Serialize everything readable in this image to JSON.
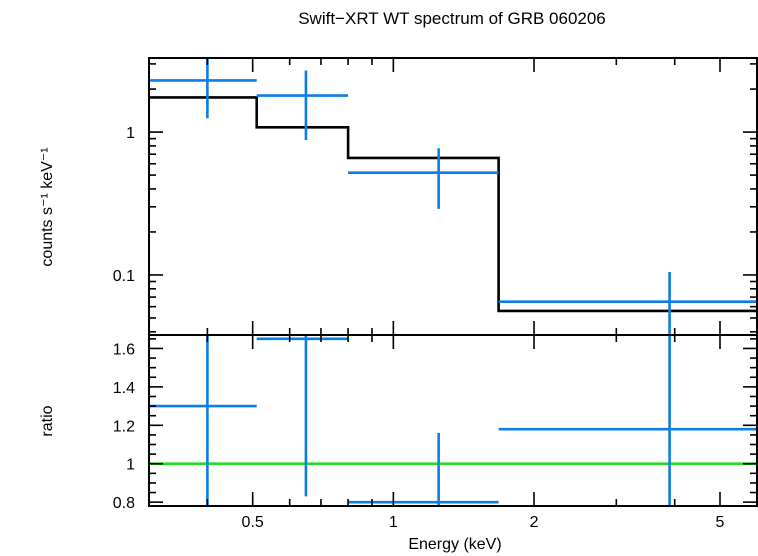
{
  "chart_data": [
    {
      "type": "line",
      "title": "Swift−XRT WT spectrum of GRB 060206",
      "ylabel": "counts s⁻¹ keV⁻¹",
      "xlabel": "",
      "xscale": "log",
      "yscale": "log",
      "xlim": [
        0.3,
        6.0
      ],
      "ylim": [
        0.038,
        3.3
      ],
      "y_ticks": [
        {
          "value": 0.1,
          "label": "0.1"
        },
        {
          "value": 1,
          "label": "1"
        }
      ],
      "series": [
        {
          "type": "errorbars",
          "color": "#0a7ee6",
          "points": [
            {
              "x": 0.4,
              "xlo": 0.3,
              "xhi": 0.51,
              "y": 2.3,
              "ylo": 1.25,
              "yhi": 3.3
            },
            {
              "x": 0.65,
              "xlo": 0.51,
              "xhi": 0.8,
              "y": 1.8,
              "ylo": 0.88,
              "yhi": 2.7
            },
            {
              "x": 1.25,
              "xlo": 0.8,
              "xhi": 1.68,
              "y": 0.52,
              "ylo": 0.29,
              "yhi": 0.77
            },
            {
              "x": 3.9,
              "xlo": 1.68,
              "xhi": 6.0,
              "y": 0.065,
              "ylo": 0.038,
              "yhi": 0.105
            }
          ]
        },
        {
          "type": "step",
          "color": "#000000",
          "edges": [
            0.3,
            0.51,
            0.8,
            1.68,
            6.0
          ],
          "values": [
            1.75,
            1.08,
            0.66,
            0.056
          ]
        }
      ]
    },
    {
      "type": "line",
      "ylabel": "ratio",
      "xlabel": "Energy (keV)",
      "xscale": "log",
      "xlim": [
        0.3,
        6.0
      ],
      "ylim": [
        0.78,
        1.67
      ],
      "x_ticks": [
        {
          "value": 0.5,
          "label": "0.5"
        },
        {
          "value": 1,
          "label": "1"
        },
        {
          "value": 2,
          "label": "2"
        },
        {
          "value": 5,
          "label": "5"
        }
      ],
      "y_ticks": [
        {
          "value": 0.8,
          "label": "0.8"
        },
        {
          "value": 1.0,
          "label": "1"
        },
        {
          "value": 1.2,
          "label": "1.2"
        },
        {
          "value": 1.4,
          "label": "1.4"
        },
        {
          "value": 1.6,
          "label": "1.6"
        }
      ],
      "reference_line": {
        "y": 1.0,
        "color": "#22dd22"
      },
      "series": [
        {
          "type": "errorbars",
          "color": "#0a7ee6",
          "points": [
            {
              "x": 0.4,
              "xlo": 0.3,
              "xhi": 0.51,
              "y": 1.3,
              "ylo": 0.78,
              "yhi": 1.67
            },
            {
              "x": 0.65,
              "xlo": 0.51,
              "xhi": 0.8,
              "y": 1.65,
              "ylo": 0.83,
              "yhi": 1.67
            },
            {
              "x": 1.25,
              "xlo": 0.8,
              "xhi": 1.68,
              "y": 0.8,
              "ylo": 0.78,
              "yhi": 1.16
            },
            {
              "x": 3.9,
              "xlo": 1.68,
              "xhi": 6.0,
              "y": 1.18,
              "ylo": 0.78,
              "yhi": 1.67
            }
          ]
        }
      ]
    }
  ]
}
